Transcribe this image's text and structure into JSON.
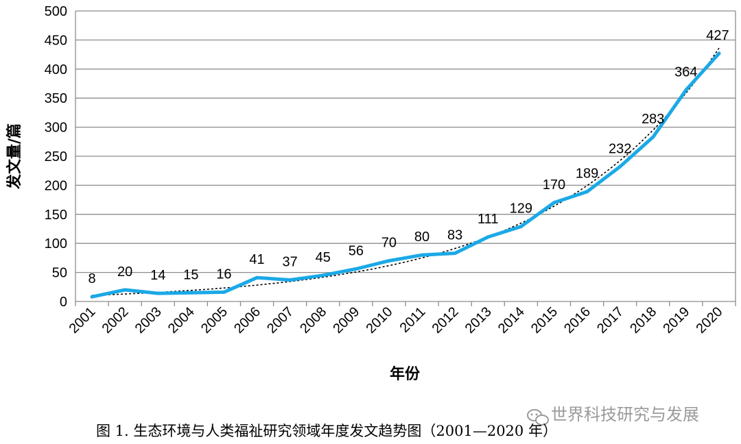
{
  "chart_data": {
    "type": "line",
    "categories": [
      "2001",
      "2002",
      "2003",
      "2004",
      "2005",
      "2006",
      "2007",
      "2008",
      "2009",
      "2010",
      "2011",
      "2012",
      "2013",
      "2014",
      "2015",
      "2016",
      "2017",
      "2018",
      "2019",
      "2020"
    ],
    "series": [
      {
        "values": [
          8,
          20,
          14,
          15,
          16,
          41,
          37,
          45,
          56,
          70,
          80,
          83,
          111,
          129,
          170,
          189,
          232,
          283,
          364,
          427
        ],
        "color": "#1ba9e6"
      }
    ],
    "trendline": {
      "style": "dotted",
      "color": "#000000"
    },
    "data_labels": [
      "8",
      "20",
      "14",
      "15",
      "16",
      "41",
      "37",
      "45",
      "56",
      "70",
      "80",
      "83",
      "111",
      "129",
      "170",
      "189",
      "232",
      "283",
      "364",
      "427"
    ],
    "yticks": [
      "0",
      "50",
      "100",
      "150",
      "200",
      "250",
      "300",
      "350",
      "400",
      "450",
      "500"
    ],
    "xlabel": "年份",
    "ylabel": "发文量/篇",
    "ylim": [
      0,
      500
    ],
    "grid": true,
    "legend": "none"
  },
  "caption": "图 1. 生态环境与人类福祉研究领域年度发文趋势图（2001—2020 年）",
  "watermark": "世界科技研究与发展",
  "watermark_icon": "wechat-icon"
}
